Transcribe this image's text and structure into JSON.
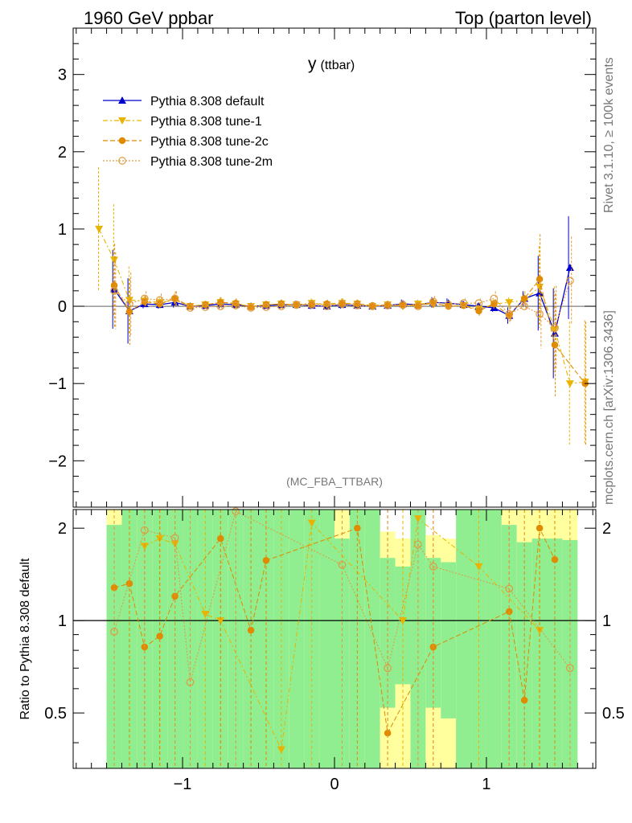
{
  "header": {
    "left": "1960 GeV ppbar",
    "right": "Top (parton level)"
  },
  "side_labels": {
    "rivet": "Rivet 3.1.10, ≥ 100k events",
    "mcplots": "mcplots.cern.ch [arXiv:1306.3436]"
  },
  "chart_data": {
    "type": "line",
    "title": "y",
    "title_sub": "(ttbar)",
    "analysis_tag": "(MC_FBA_TTBAR)",
    "xlim": [
      -1.72,
      1.72
    ],
    "ylim": [
      -2.6,
      3.6
    ],
    "ratio_ylim": [
      0.33,
      2.3
    ],
    "ylabel_ratio": "Ratio to Pythia 8.308 default",
    "x_ticks": [
      -1,
      0,
      1
    ],
    "x_tick_labels": [
      "−1",
      "0",
      "1"
    ],
    "y_ticks": [
      -2,
      -1,
      0,
      1,
      2,
      3
    ],
    "y_tick_labels": [
      "−2",
      "−1",
      "0",
      "1",
      "2",
      "3"
    ],
    "ratio_ticks": [
      0.5,
      1,
      2
    ],
    "ratio_tick_labels": [
      "0.5",
      "1",
      "2"
    ],
    "series": [
      {
        "name": "Pythia 8.308 default",
        "color": "#0000cc",
        "marker": "triangle-up",
        "style": "solid",
        "x": [
          -1.45,
          -1.35,
          -1.25,
          -1.15,
          -1.05,
          -0.95,
          -0.85,
          -0.75,
          -0.65,
          -0.55,
          -0.45,
          -0.35,
          -0.25,
          -0.15,
          -0.05,
          0.05,
          0.15,
          0.25,
          0.35,
          0.45,
          0.55,
          0.65,
          0.75,
          0.85,
          0.95,
          1.05,
          1.15,
          1.25,
          1.35,
          1.45,
          1.55
        ],
        "y": [
          0.22,
          -0.06,
          0.03,
          0.02,
          0.05,
          0.0,
          0.01,
          0.03,
          0.02,
          0.0,
          0.01,
          0.02,
          0.02,
          0.01,
          0.0,
          0.02,
          0.01,
          0.0,
          0.01,
          0.03,
          0.02,
          0.05,
          0.04,
          0.02,
          0.0,
          -0.02,
          -0.12,
          0.1,
          0.17,
          -0.35,
          0.5
        ]
      },
      {
        "name": "Pythia 8.308 tune-1",
        "color": "#e8b400",
        "marker": "triangle-down",
        "style": "dashdot",
        "x": [
          -1.55,
          -1.45,
          -1.35,
          -1.25,
          -1.15,
          -1.05,
          -0.95,
          -0.85,
          -0.75,
          -0.65,
          -0.55,
          -0.45,
          -0.35,
          -0.25,
          -0.15,
          -0.05,
          0.05,
          0.15,
          0.25,
          0.35,
          0.45,
          0.55,
          0.65,
          0.75,
          0.85,
          0.95,
          1.05,
          1.15,
          1.25,
          1.35,
          1.45,
          1.55,
          1.65
        ],
        "y": [
          1.0,
          0.6,
          0.08,
          0.07,
          0.05,
          0.08,
          0.0,
          0.02,
          0.05,
          0.03,
          0.0,
          0.02,
          0.03,
          0.02,
          0.04,
          0.02,
          0.04,
          0.03,
          0.0,
          0.02,
          0.0,
          0.03,
          0.04,
          0.0,
          0.01,
          -0.04,
          0.03,
          0.05,
          0.08,
          0.25,
          -0.3,
          -1.0,
          -0.98
        ]
      },
      {
        "name": "Pythia 8.308 tune-2c",
        "color": "#e08a00",
        "marker": "circle-filled",
        "style": "dashed",
        "x": [
          -1.45,
          -1.35,
          -1.25,
          -1.15,
          -1.05,
          -0.95,
          -0.85,
          -0.75,
          -0.65,
          -0.55,
          -0.45,
          -0.35,
          -0.25,
          -0.15,
          -0.05,
          0.05,
          0.15,
          0.25,
          0.35,
          0.45,
          0.55,
          0.65,
          0.75,
          0.85,
          0.95,
          1.05,
          1.15,
          1.25,
          1.35,
          1.45,
          1.65
        ],
        "y": [
          0.27,
          -0.07,
          0.06,
          0.03,
          0.1,
          0.0,
          0.02,
          0.05,
          0.04,
          -0.01,
          0.02,
          0.03,
          0.01,
          0.03,
          0.03,
          0.04,
          0.03,
          0.01,
          0.02,
          0.01,
          0.01,
          0.04,
          0.0,
          0.01,
          -0.06,
          0.03,
          -0.12,
          0.1,
          0.35,
          -0.5,
          -1.0
        ]
      },
      {
        "name": "Pythia 8.308 tune-2m",
        "color": "#e09a40",
        "marker": "circle-open",
        "style": "dotted",
        "x": [
          -1.45,
          -1.35,
          -1.25,
          -1.15,
          -1.05,
          -0.95,
          -0.85,
          -0.75,
          -0.65,
          -0.55,
          -0.45,
          -0.35,
          -0.25,
          -0.15,
          -0.05,
          0.05,
          0.15,
          0.25,
          0.35,
          0.45,
          0.55,
          0.65,
          0.75,
          0.85,
          0.95,
          1.05,
          1.15,
          1.25,
          1.35,
          1.45,
          1.55
        ],
        "y": [
          0.2,
          0.03,
          0.1,
          0.08,
          0.1,
          -0.02,
          -0.01,
          0.0,
          0.01,
          -0.02,
          -0.01,
          0.0,
          0.02,
          0.02,
          0.0,
          0.03,
          0.01,
          0.0,
          0.01,
          0.02,
          0.0,
          0.06,
          0.02,
          0.04,
          0.04,
          0.1,
          -0.1,
          0.0,
          -0.1,
          -0.28,
          0.33
        ]
      }
    ],
    "ratio_series": [
      {
        "name": "Pythia 8.308 tune-1",
        "color": "#e8b400",
        "marker": "triangle-down",
        "style": "dashdot",
        "x": [
          -1.25,
          -1.15,
          -1.05,
          -0.85,
          -0.75,
          -0.35,
          -0.15,
          0.45,
          0.55,
          0.95,
          1.35
        ],
        "y": [
          1.75,
          1.85,
          1.78,
          1.05,
          1.0,
          0.38,
          2.08,
          1.0,
          2.15,
          1.5,
          0.93
        ]
      },
      {
        "name": "Pythia 8.308 tune-2c",
        "color": "#e08a00",
        "marker": "circle-filled",
        "style": "dashed",
        "x": [
          -1.45,
          -1.35,
          -1.25,
          -1.15,
          -1.05,
          -0.75,
          -0.55,
          -0.45,
          0.15,
          0.35,
          0.65,
          1.15,
          1.25,
          1.35,
          1.45
        ],
        "y": [
          1.28,
          1.32,
          0.82,
          0.89,
          1.2,
          1.85,
          0.93,
          1.57,
          2.0,
          0.43,
          0.82,
          1.07,
          0.55,
          2.0,
          1.58
        ]
      },
      {
        "name": "Pythia 8.308 tune-2m",
        "color": "#e09a40",
        "marker": "circle-open",
        "style": "dotted",
        "x": [
          -1.45,
          -1.25,
          -1.05,
          -0.95,
          -0.65,
          0.05,
          0.35,
          0.55,
          0.65,
          1.15,
          1.55
        ],
        "y": [
          0.92,
          1.97,
          1.86,
          0.63,
          2.27,
          1.52,
          0.7,
          1.77,
          1.5,
          1.27,
          0.7
        ]
      }
    ],
    "ratio_bands": {
      "green_color": "#90ee90",
      "yellow_color": "#ffff9e",
      "x_edges": [
        -1.5,
        -1.4,
        -1.3,
        -1.2,
        -1.1,
        -1.0,
        -0.9,
        -0.8,
        -0.7,
        -0.6,
        -0.5,
        -0.4,
        -0.3,
        -0.2,
        -0.1,
        0.0,
        0.1,
        0.2,
        0.3,
        0.4,
        0.5,
        0.6,
        0.7,
        0.8,
        0.9,
        1.0,
        1.1,
        1.2,
        1.3,
        1.4,
        1.5,
        1.6
      ],
      "green_hi": [
        2.05,
        2.3,
        2.3,
        2.3,
        2.3,
        2.3,
        2.3,
        2.3,
        2.3,
        2.3,
        2.3,
        2.3,
        2.3,
        2.3,
        2.3,
        1.85,
        2.3,
        2.3,
        1.6,
        1.5,
        2.3,
        1.6,
        1.55,
        2.3,
        2.3,
        2.3,
        2.05,
        1.8,
        1.85,
        1.85,
        1.83
      ],
      "green_lo": [
        0.33,
        0.33,
        0.33,
        0.33,
        0.33,
        0.33,
        0.33,
        0.33,
        0.33,
        0.33,
        0.33,
        0.33,
        0.33,
        0.33,
        0.33,
        0.33,
        0.33,
        0.33,
        0.52,
        0.62,
        0.33,
        0.52,
        0.48,
        0.33,
        0.33,
        0.33,
        0.33,
        0.33,
        0.33,
        0.33,
        0.33
      ],
      "yellow_hi": [
        2.3,
        2.3,
        2.3,
        2.3,
        2.3,
        2.3,
        2.3,
        2.3,
        2.3,
        2.3,
        2.3,
        2.3,
        2.3,
        2.3,
        2.3,
        2.3,
        2.3,
        2.3,
        1.95,
        1.85,
        2.3,
        1.9,
        1.85,
        2.3,
        2.3,
        2.3,
        2.3,
        2.3,
        2.3,
        2.3,
        2.3
      ],
      "yellow_lo": [
        0.33,
        0.33,
        0.33,
        0.33,
        0.33,
        0.33,
        0.33,
        0.33,
        0.33,
        0.33,
        0.33,
        0.33,
        0.33,
        0.33,
        0.33,
        0.33,
        0.33,
        0.33,
        0.33,
        0.33,
        0.33,
        0.33,
        0.33,
        0.33,
        0.33,
        0.33,
        0.33,
        0.33,
        0.33,
        0.33,
        0.33
      ]
    }
  }
}
